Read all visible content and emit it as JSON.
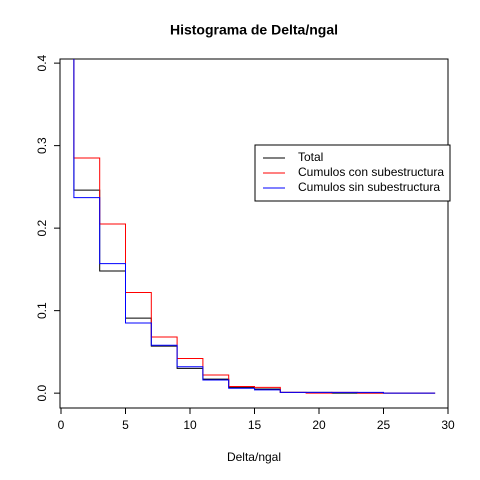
{
  "chart_data": {
    "type": "step",
    "title": "Histograma de Delta/ngal",
    "x_label": "Delta/ngal",
    "x": [
      1,
      3,
      5,
      7,
      9,
      11,
      13,
      15,
      17,
      19,
      21,
      23,
      25,
      27,
      29
    ],
    "series": [
      {
        "name": "Total",
        "color": "#000000",
        "values": [
          0.246,
          0.148,
          0.091,
          0.057,
          0.03,
          0.017,
          0.007,
          0.005,
          0.001,
          0.001,
          0,
          0,
          0,
          0,
          0
        ]
      },
      {
        "name": "Cumulos con subestructura",
        "color": "#ff0000",
        "values": [
          0.285,
          0.205,
          0.122,
          0.068,
          0.042,
          0.022,
          0.008,
          0.007,
          0.001,
          0,
          0.001,
          0,
          0,
          0,
          0
        ]
      },
      {
        "name": "Cumulos sin subestructura",
        "color": "#0000ff",
        "values": [
          0.237,
          0.157,
          0.085,
          0.058,
          0.032,
          0.016,
          0.006,
          0.004,
          0.001,
          0.001,
          0.001,
          0.001,
          0,
          0,
          0
        ]
      }
    ],
    "xlim": [
      0,
      30
    ],
    "xticks": [
      0,
      5,
      10,
      15,
      20,
      25,
      30
    ],
    "ylim": [
      -0.018,
      0.405
    ],
    "yticks": [
      {
        "value": 0,
        "label": "0.0"
      },
      0.1,
      0.2,
      0.3,
      0.4
    ],
    "legend": "right"
  }
}
